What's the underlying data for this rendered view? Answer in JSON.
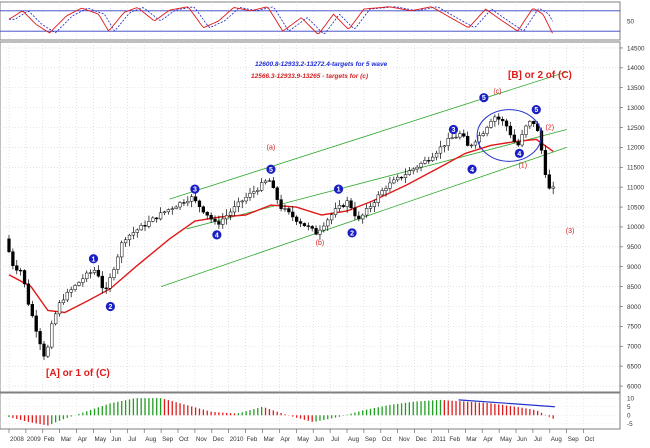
{
  "chart_data": {
    "type": "candlestick",
    "bar_interval": "weekly",
    "grid": true,
    "price_axis": {
      "ylim": [
        5850,
        14650
      ],
      "ticks": [
        6000,
        6500,
        7000,
        7500,
        8000,
        8500,
        9000,
        9500,
        10000,
        10500,
        11000,
        11500,
        12000,
        12500,
        13000,
        13500,
        14000,
        14500
      ]
    },
    "time_axis": {
      "tick_labels": [
        "2008",
        "2009",
        "Feb",
        "Mar",
        "Apr",
        "May",
        "Jun",
        "Jul",
        "Aug",
        "Sep",
        "Oct",
        "Nov",
        "Dec",
        "2010",
        "Feb",
        "Mar",
        "Apr",
        "May",
        "Jun",
        "Jul",
        "Aug",
        "Sep",
        "Oct",
        "Nov",
        "Dec",
        "2011",
        "Feb",
        "Mar",
        "Apr",
        "May",
        "Jun",
        "Jul",
        "Aug",
        "Sep",
        "Oct"
      ]
    },
    "price_key_points": [
      {
        "t": 0.0,
        "p": 9700
      },
      {
        "t": 0.5,
        "p": 9000
      },
      {
        "t": 1.0,
        "p": 8900
      },
      {
        "t": 1.3,
        "p": 8200
      },
      {
        "t": 2.0,
        "p": 7200
      },
      {
        "t": 2.4,
        "p": 6650
      },
      {
        "t": 2.8,
        "p": 7600
      },
      {
        "t": 3.3,
        "p": 8150
      },
      {
        "t": 4.7,
        "p": 8750
      },
      {
        "t": 5.4,
        "p": 8950
      },
      {
        "t": 5.9,
        "p": 8300
      },
      {
        "t": 7.0,
        "p": 9700
      },
      {
        "t": 9.5,
        "p": 10400
      },
      {
        "t": 11.0,
        "p": 10750
      },
      {
        "t": 12.0,
        "p": 10300
      },
      {
        "t": 12.5,
        "p": 10050
      },
      {
        "t": 14.0,
        "p": 10650
      },
      {
        "t": 15.6,
        "p": 11200
      },
      {
        "t": 16.3,
        "p": 10500
      },
      {
        "t": 17.2,
        "p": 10200
      },
      {
        "t": 18.4,
        "p": 9850
      },
      {
        "t": 19.5,
        "p": 10400
      },
      {
        "t": 20.3,
        "p": 10650
      },
      {
        "t": 20.9,
        "p": 10150
      },
      {
        "t": 22.5,
        "p": 11000
      },
      {
        "t": 25.0,
        "p": 11700
      },
      {
        "t": 26.3,
        "p": 12200
      },
      {
        "t": 27.0,
        "p": 12350
      },
      {
        "t": 27.4,
        "p": 12000
      },
      {
        "t": 28.3,
        "p": 12400
      },
      {
        "t": 28.9,
        "p": 12800
      },
      {
        "t": 29.6,
        "p": 12600
      },
      {
        "t": 30.3,
        "p": 12000
      },
      {
        "t": 30.8,
        "p": 12500
      },
      {
        "t": 31.2,
        "p": 12700
      },
      {
        "t": 31.6,
        "p": 12300
      },
      {
        "t": 31.9,
        "p": 11500
      },
      {
        "t": 32.2,
        "p": 10950
      }
    ],
    "moving_average_key_points": [
      {
        "t": 0.0,
        "p": 8800
      },
      {
        "t": 1.3,
        "p": 8500
      },
      {
        "t": 2.3,
        "p": 7900
      },
      {
        "t": 3.3,
        "p": 7850
      },
      {
        "t": 4.7,
        "p": 8150
      },
      {
        "t": 6.0,
        "p": 8450
      },
      {
        "t": 7.5,
        "p": 9000
      },
      {
        "t": 9.5,
        "p": 9700
      },
      {
        "t": 11.0,
        "p": 10150
      },
      {
        "t": 12.5,
        "p": 10250
      },
      {
        "t": 14.0,
        "p": 10300
      },
      {
        "t": 15.5,
        "p": 10550
      },
      {
        "t": 17.0,
        "p": 10500
      },
      {
        "t": 18.5,
        "p": 10300
      },
      {
        "t": 20.0,
        "p": 10400
      },
      {
        "t": 21.5,
        "p": 10650
      },
      {
        "t": 23.5,
        "p": 11050
      },
      {
        "t": 25.5,
        "p": 11500
      },
      {
        "t": 27.0,
        "p": 11850
      },
      {
        "t": 28.5,
        "p": 12050
      },
      {
        "t": 30.0,
        "p": 12150
      },
      {
        "t": 31.2,
        "p": 12200
      },
      {
        "t": 32.2,
        "p": 11900
      }
    ],
    "channel_lines": [
      {
        "t1": 9.5,
        "p1": 10700,
        "t2": 33.0,
        "p2": 13900
      },
      {
        "t1": 10.5,
        "p1": 9950,
        "t2": 33.0,
        "p2": 12450
      },
      {
        "t1": 9.0,
        "p1": 8500,
        "t2": 33.0,
        "p2": 12000
      }
    ],
    "wave_ellipse": {
      "t_center": 29.6,
      "p_center": 12300,
      "t_radius": 1.9,
      "p_radius": 650
    },
    "wave_labels_blue": [
      {
        "text": "1",
        "t": 5.0,
        "p": 9200
      },
      {
        "text": "2",
        "t": 6.0,
        "p": 8000
      },
      {
        "text": "3",
        "t": 11.0,
        "p": 10950
      },
      {
        "text": "4",
        "t": 12.3,
        "p": 9800
      },
      {
        "text": "5",
        "t": 15.5,
        "p": 11450
      },
      {
        "text": "1",
        "t": 19.5,
        "p": 10950
      },
      {
        "text": "2",
        "t": 20.3,
        "p": 9850
      },
      {
        "text": "3",
        "t": 26.3,
        "p": 12450
      },
      {
        "text": "4",
        "t": 27.4,
        "p": 11450
      },
      {
        "text": "5",
        "t": 28.1,
        "p": 13250
      },
      {
        "text": "4",
        "t": 30.2,
        "p": 11850
      },
      {
        "text": "5",
        "t": 31.2,
        "p": 12950
      }
    ],
    "wave_labels_red": [
      {
        "text": "(a)",
        "t": 15.5,
        "p": 11950
      },
      {
        "text": "(b)",
        "t": 18.4,
        "p": 9550
      },
      {
        "text": "(c)",
        "t": 28.9,
        "p": 13350
      },
      {
        "text": "(1)",
        "t": 30.4,
        "p": 11500
      },
      {
        "text": "(2)",
        "t": 32.0,
        "p": 12450
      },
      {
        "text": "(3)",
        "t": 33.2,
        "p": 9850
      }
    ],
    "annotations": {
      "text_blue": "12600.8-12933.2-13272.4-targets for 5 wave",
      "text_red": "12566.3-12933.9-13265 - targets for (c)",
      "wave_B": "[B] or 2 of (C)",
      "wave_A": "[A] or 1 of (C)"
    },
    "stochastic_panel": {
      "ticks": [
        50
      ],
      "levels": [
        80,
        20
      ],
      "series_key_points": [
        {
          "t": 0.0,
          "p": 55
        },
        {
          "t": 0.8,
          "p": 80
        },
        {
          "t": 1.6,
          "p": 40
        },
        {
          "t": 2.4,
          "p": 15
        },
        {
          "t": 3.4,
          "p": 65
        },
        {
          "t": 4.3,
          "p": 88
        },
        {
          "t": 5.3,
          "p": 70
        },
        {
          "t": 5.9,
          "p": 20
        },
        {
          "t": 6.8,
          "p": 75
        },
        {
          "t": 7.6,
          "p": 90
        },
        {
          "t": 8.6,
          "p": 50
        },
        {
          "t": 9.5,
          "p": 82
        },
        {
          "t": 10.6,
          "p": 92
        },
        {
          "t": 11.5,
          "p": 30
        },
        {
          "t": 12.4,
          "p": 50
        },
        {
          "t": 13.3,
          "p": 90
        },
        {
          "t": 14.3,
          "p": 80
        },
        {
          "t": 15.3,
          "p": 92
        },
        {
          "t": 16.2,
          "p": 20
        },
        {
          "t": 17.3,
          "p": 60
        },
        {
          "t": 18.3,
          "p": 10
        },
        {
          "t": 19.2,
          "p": 70
        },
        {
          "t": 20.1,
          "p": 25
        },
        {
          "t": 21.0,
          "p": 85
        },
        {
          "t": 22.5,
          "p": 92
        },
        {
          "t": 23.8,
          "p": 80
        },
        {
          "t": 25.0,
          "p": 92
        },
        {
          "t": 26.3,
          "p": 55
        },
        {
          "t": 27.2,
          "p": 30
        },
        {
          "t": 28.2,
          "p": 85
        },
        {
          "t": 29.2,
          "p": 50
        },
        {
          "t": 30.1,
          "p": 20
        },
        {
          "t": 31.0,
          "p": 88
        },
        {
          "t": 31.6,
          "p": 70
        },
        {
          "t": 32.2,
          "p": 10
        }
      ]
    },
    "macd_panel": {
      "ticks": [
        10,
        5,
        0,
        -5
      ],
      "ylim": [
        -8,
        13
      ],
      "histogram_key_points": [
        {
          "t": 0.0,
          "p": -1
        },
        {
          "t": 1.2,
          "p": -4
        },
        {
          "t": 2.3,
          "p": -6
        },
        {
          "t": 3.3,
          "p": -2
        },
        {
          "t": 4.5,
          "p": 2
        },
        {
          "t": 6.0,
          "p": 7
        },
        {
          "t": 7.5,
          "p": 10
        },
        {
          "t": 9.0,
          "p": 10
        },
        {
          "t": 10.5,
          "p": 6
        },
        {
          "t": 12.0,
          "p": 2
        },
        {
          "t": 13.5,
          "p": 1
        },
        {
          "t": 15.0,
          "p": 5
        },
        {
          "t": 16.5,
          "p": 0
        },
        {
          "t": 18.0,
          "p": -4
        },
        {
          "t": 19.5,
          "p": -1
        },
        {
          "t": 21.0,
          "p": 3
        },
        {
          "t": 22.5,
          "p": 6
        },
        {
          "t": 24.0,
          "p": 8
        },
        {
          "t": 25.5,
          "p": 9
        },
        {
          "t": 27.0,
          "p": 8
        },
        {
          "t": 28.5,
          "p": 7
        },
        {
          "t": 30.0,
          "p": 5
        },
        {
          "t": 31.2,
          "p": 3
        },
        {
          "t": 32.2,
          "p": -2
        }
      ],
      "trend_line": {
        "t1": 26.6,
        "p1": 9,
        "t2": 32.3,
        "p2": 5
      }
    }
  }
}
